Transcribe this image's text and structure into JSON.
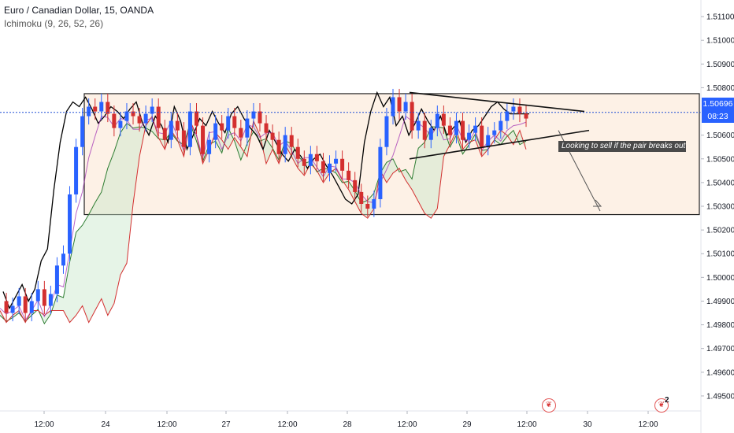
{
  "legend": {
    "title": "Euro / Canadian Dollar, 15, OANDA",
    "indicator": "Ichimoku (9, 26, 52, 26)"
  },
  "price_axis": {
    "last_price": "1.50696",
    "countdown": "08:23"
  },
  "annotation": "Looking to sell if the pair breaks out",
  "events": [
    {
      "icon": "canada-flag-icon",
      "count": ""
    },
    {
      "icon": "canada-flag-icon",
      "count": "2"
    }
  ],
  "colors": {
    "candle_up": "#2962ff",
    "candle_down": "#d32f2f",
    "tenkan": "#e53935",
    "kijun": "#000000",
    "chikou": "#9c27b0",
    "span_a": "#2e7d32",
    "span_b": "#d32f2f",
    "last_price_line": "#1e4fd6",
    "range_fill": "#fdf1e6"
  },
  "chart_data": {
    "type": "candlestick",
    "symbol": "Euro / Canadian Dollar",
    "interval": "15",
    "source": "OANDA",
    "ylim": [
      1.4944,
      1.5117
    ],
    "y_ticks": [
      "1.51100",
      "1.51000",
      "1.50900",
      "1.50800",
      "1.50600",
      "1.50500",
      "1.50400",
      "1.50300",
      "1.50200",
      "1.50100",
      "1.50000",
      "1.49900",
      "1.49800",
      "1.49700",
      "1.49600",
      "1.49500"
    ],
    "x_ticks": [
      "12:00",
      "24",
      "12:00",
      "27",
      "12:00",
      "28",
      "12:00",
      "29",
      "12:00",
      "30",
      "12:00"
    ],
    "last_price": 1.50696,
    "range_box": {
      "top": 1.50775,
      "bottom": 1.50265
    },
    "triangle": {
      "upper": [
        [
          1.5078,
          1.507
        ]
      ],
      "lower": [
        [
          1.505,
          1.5062
        ]
      ]
    },
    "projection_arrow": {
      "from": 1.5062,
      "to": 1.5028
    },
    "close_path": [
      1.499,
      1.4985,
      1.4988,
      1.4992,
      1.4985,
      1.499,
      1.4995,
      1.4988,
      1.4993,
      1.5005,
      1.501,
      1.5035,
      1.5055,
      1.5068,
      1.5072,
      1.507,
      1.5074,
      1.5069,
      1.5063,
      1.5066,
      1.507,
      1.5068,
      1.5065,
      1.5069,
      1.5072,
      1.5063,
      1.5058,
      1.5066,
      1.5062,
      1.5055,
      1.507,
      1.5064,
      1.5052,
      1.5058,
      1.5065,
      1.5062,
      1.5068,
      1.5063,
      1.5059,
      1.5067,
      1.507,
      1.5065,
      1.5061,
      1.5058,
      1.5052,
      1.506,
      1.5055,
      1.505,
      1.5047,
      1.5052,
      1.5049,
      1.5044,
      1.5048,
      1.505,
      1.5045,
      1.5041,
      1.5036,
      1.5031,
      1.5029,
      1.5033,
      1.5055,
      1.5068,
      1.5076,
      1.507,
      1.5074,
      1.5062,
      1.5066,
      1.5058,
      1.5063,
      1.5069,
      1.5064,
      1.506,
      1.5066,
      1.5058,
      1.5061,
      1.5064,
      1.5055,
      1.506,
      1.5062,
      1.5066,
      1.507,
      1.5072,
      1.5069,
      1.5067
    ]
  }
}
